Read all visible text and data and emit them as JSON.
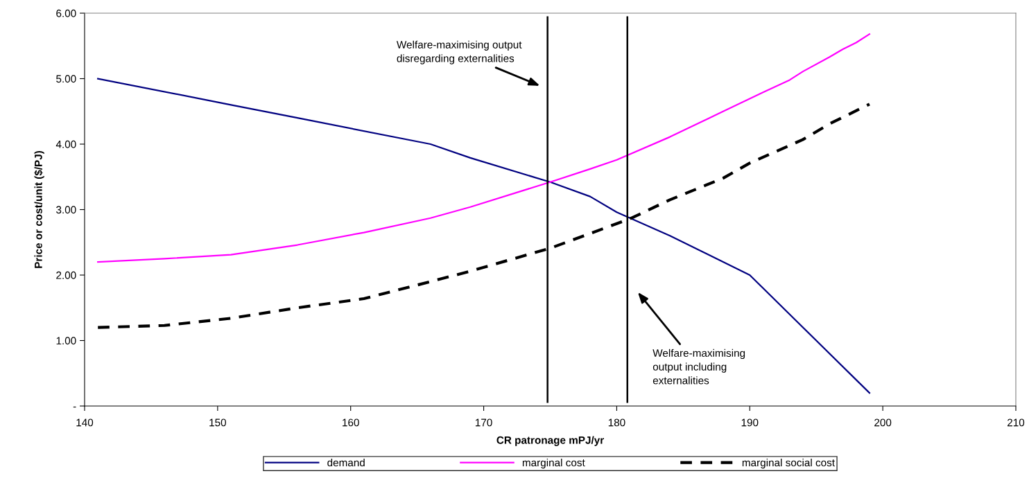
{
  "chart_data": {
    "type": "line",
    "xlabel": "CR patronage mPJ/yr",
    "ylabel": "Price or cost/unit ($/PJ)",
    "xlim": [
      140,
      210
    ],
    "xticks": [
      140,
      150,
      160,
      170,
      180,
      190,
      200,
      210
    ],
    "ylim": [
      0,
      6
    ],
    "yticks": [
      {
        "value": 0,
        "label": "-"
      },
      {
        "value": 1,
        "label": "1.00"
      },
      {
        "value": 2,
        "label": "2.00"
      },
      {
        "value": 3,
        "label": "3.00"
      },
      {
        "value": 4,
        "label": "4.00"
      },
      {
        "value": 5,
        "label": "5.00"
      },
      {
        "value": 6,
        "label": "6.00"
      }
    ],
    "grid": false,
    "legend": "bottom",
    "marker": "none",
    "series": [
      {
        "name": "demand",
        "color": "#000080",
        "line_style": "solid",
        "x": [
          141,
          151,
          156,
          166,
          169,
          175,
          178,
          180,
          184,
          190,
          199
        ],
        "values": [
          5.0,
          4.6,
          4.4,
          4.0,
          3.79,
          3.42,
          3.2,
          2.96,
          2.6,
          2.0,
          0.2
        ]
      },
      {
        "name": "marginal cost",
        "color": "#ff00ff",
        "line_style": "solid",
        "x": [
          141,
          146,
          151,
          156,
          161,
          166,
          169,
          175,
          178,
          180,
          184,
          188,
          191,
          193,
          194,
          196,
          197,
          198,
          199
        ],
        "values": [
          2.2,
          2.25,
          2.31,
          2.46,
          2.65,
          2.87,
          3.04,
          3.42,
          3.62,
          3.76,
          4.11,
          4.5,
          4.79,
          4.98,
          5.11,
          5.33,
          5.45,
          5.55,
          5.68
        ]
      },
      {
        "name": "marginal social cost",
        "color": "#000000",
        "line_style": "dashed",
        "x": [
          141,
          146,
          151,
          156,
          161,
          166,
          169,
          175,
          181,
          184,
          188,
          190,
          194,
          196,
          199
        ],
        "values": [
          1.2,
          1.23,
          1.34,
          1.5,
          1.64,
          1.9,
          2.06,
          2.41,
          2.86,
          3.15,
          3.48,
          3.71,
          4.07,
          4.31,
          4.61
        ]
      }
    ],
    "ref_lines": [
      {
        "axis": "x",
        "value": 174.8,
        "color": "#000000"
      },
      {
        "axis": "x",
        "value": 180.8,
        "color": "#000000"
      }
    ],
    "annotations": [
      "Welfare-maximising output\ndisregarding externalities",
      "Welfare-maximising\noutput including\nexternalities"
    ]
  }
}
